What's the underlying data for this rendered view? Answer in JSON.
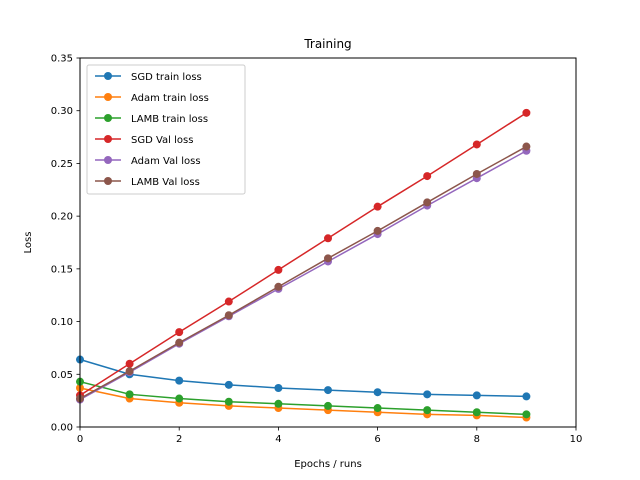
{
  "chart_data": {
    "type": "line",
    "title": "Training",
    "xlabel": "Epochs / runs",
    "ylabel": "Loss",
    "xlim": [
      0,
      10
    ],
    "ylim": [
      0,
      0.35
    ],
    "xticks": [
      "0",
      "2",
      "4",
      "6",
      "8",
      "10"
    ],
    "yticks": [
      "0.00",
      "0.05",
      "0.10",
      "0.15",
      "0.20",
      "0.25",
      "0.30",
      "0.35"
    ],
    "grid": false,
    "legend_position": "top-left",
    "x": [
      0,
      1,
      2,
      3,
      4,
      5,
      6,
      7,
      8,
      9
    ],
    "series": [
      {
        "name": "SGD train loss",
        "color": "#1f77b4",
        "values": [
          0.064,
          0.05,
          0.044,
          0.04,
          0.037,
          0.035,
          0.033,
          0.031,
          0.03,
          0.029
        ]
      },
      {
        "name": "Adam train loss",
        "color": "#ff7f0e",
        "values": [
          0.037,
          0.027,
          0.023,
          0.02,
          0.018,
          0.016,
          0.014,
          0.012,
          0.011,
          0.009
        ]
      },
      {
        "name": "LAMB train loss",
        "color": "#2ca02c",
        "values": [
          0.043,
          0.031,
          0.027,
          0.024,
          0.022,
          0.02,
          0.018,
          0.016,
          0.014,
          0.012
        ]
      },
      {
        "name": "SGD Val loss",
        "color": "#d62728",
        "values": [
          0.03,
          0.06,
          0.09,
          0.119,
          0.149,
          0.179,
          0.209,
          0.238,
          0.268,
          0.298
        ]
      },
      {
        "name": "Adam Val loss",
        "color": "#9467bd",
        "values": [
          0.026,
          0.052,
          0.079,
          0.105,
          0.131,
          0.157,
          0.183,
          0.21,
          0.236,
          0.262
        ]
      },
      {
        "name": "LAMB Val loss",
        "color": "#8c564b",
        "values": [
          0.027,
          0.053,
          0.08,
          0.106,
          0.133,
          0.16,
          0.186,
          0.213,
          0.24,
          0.266
        ]
      }
    ]
  }
}
